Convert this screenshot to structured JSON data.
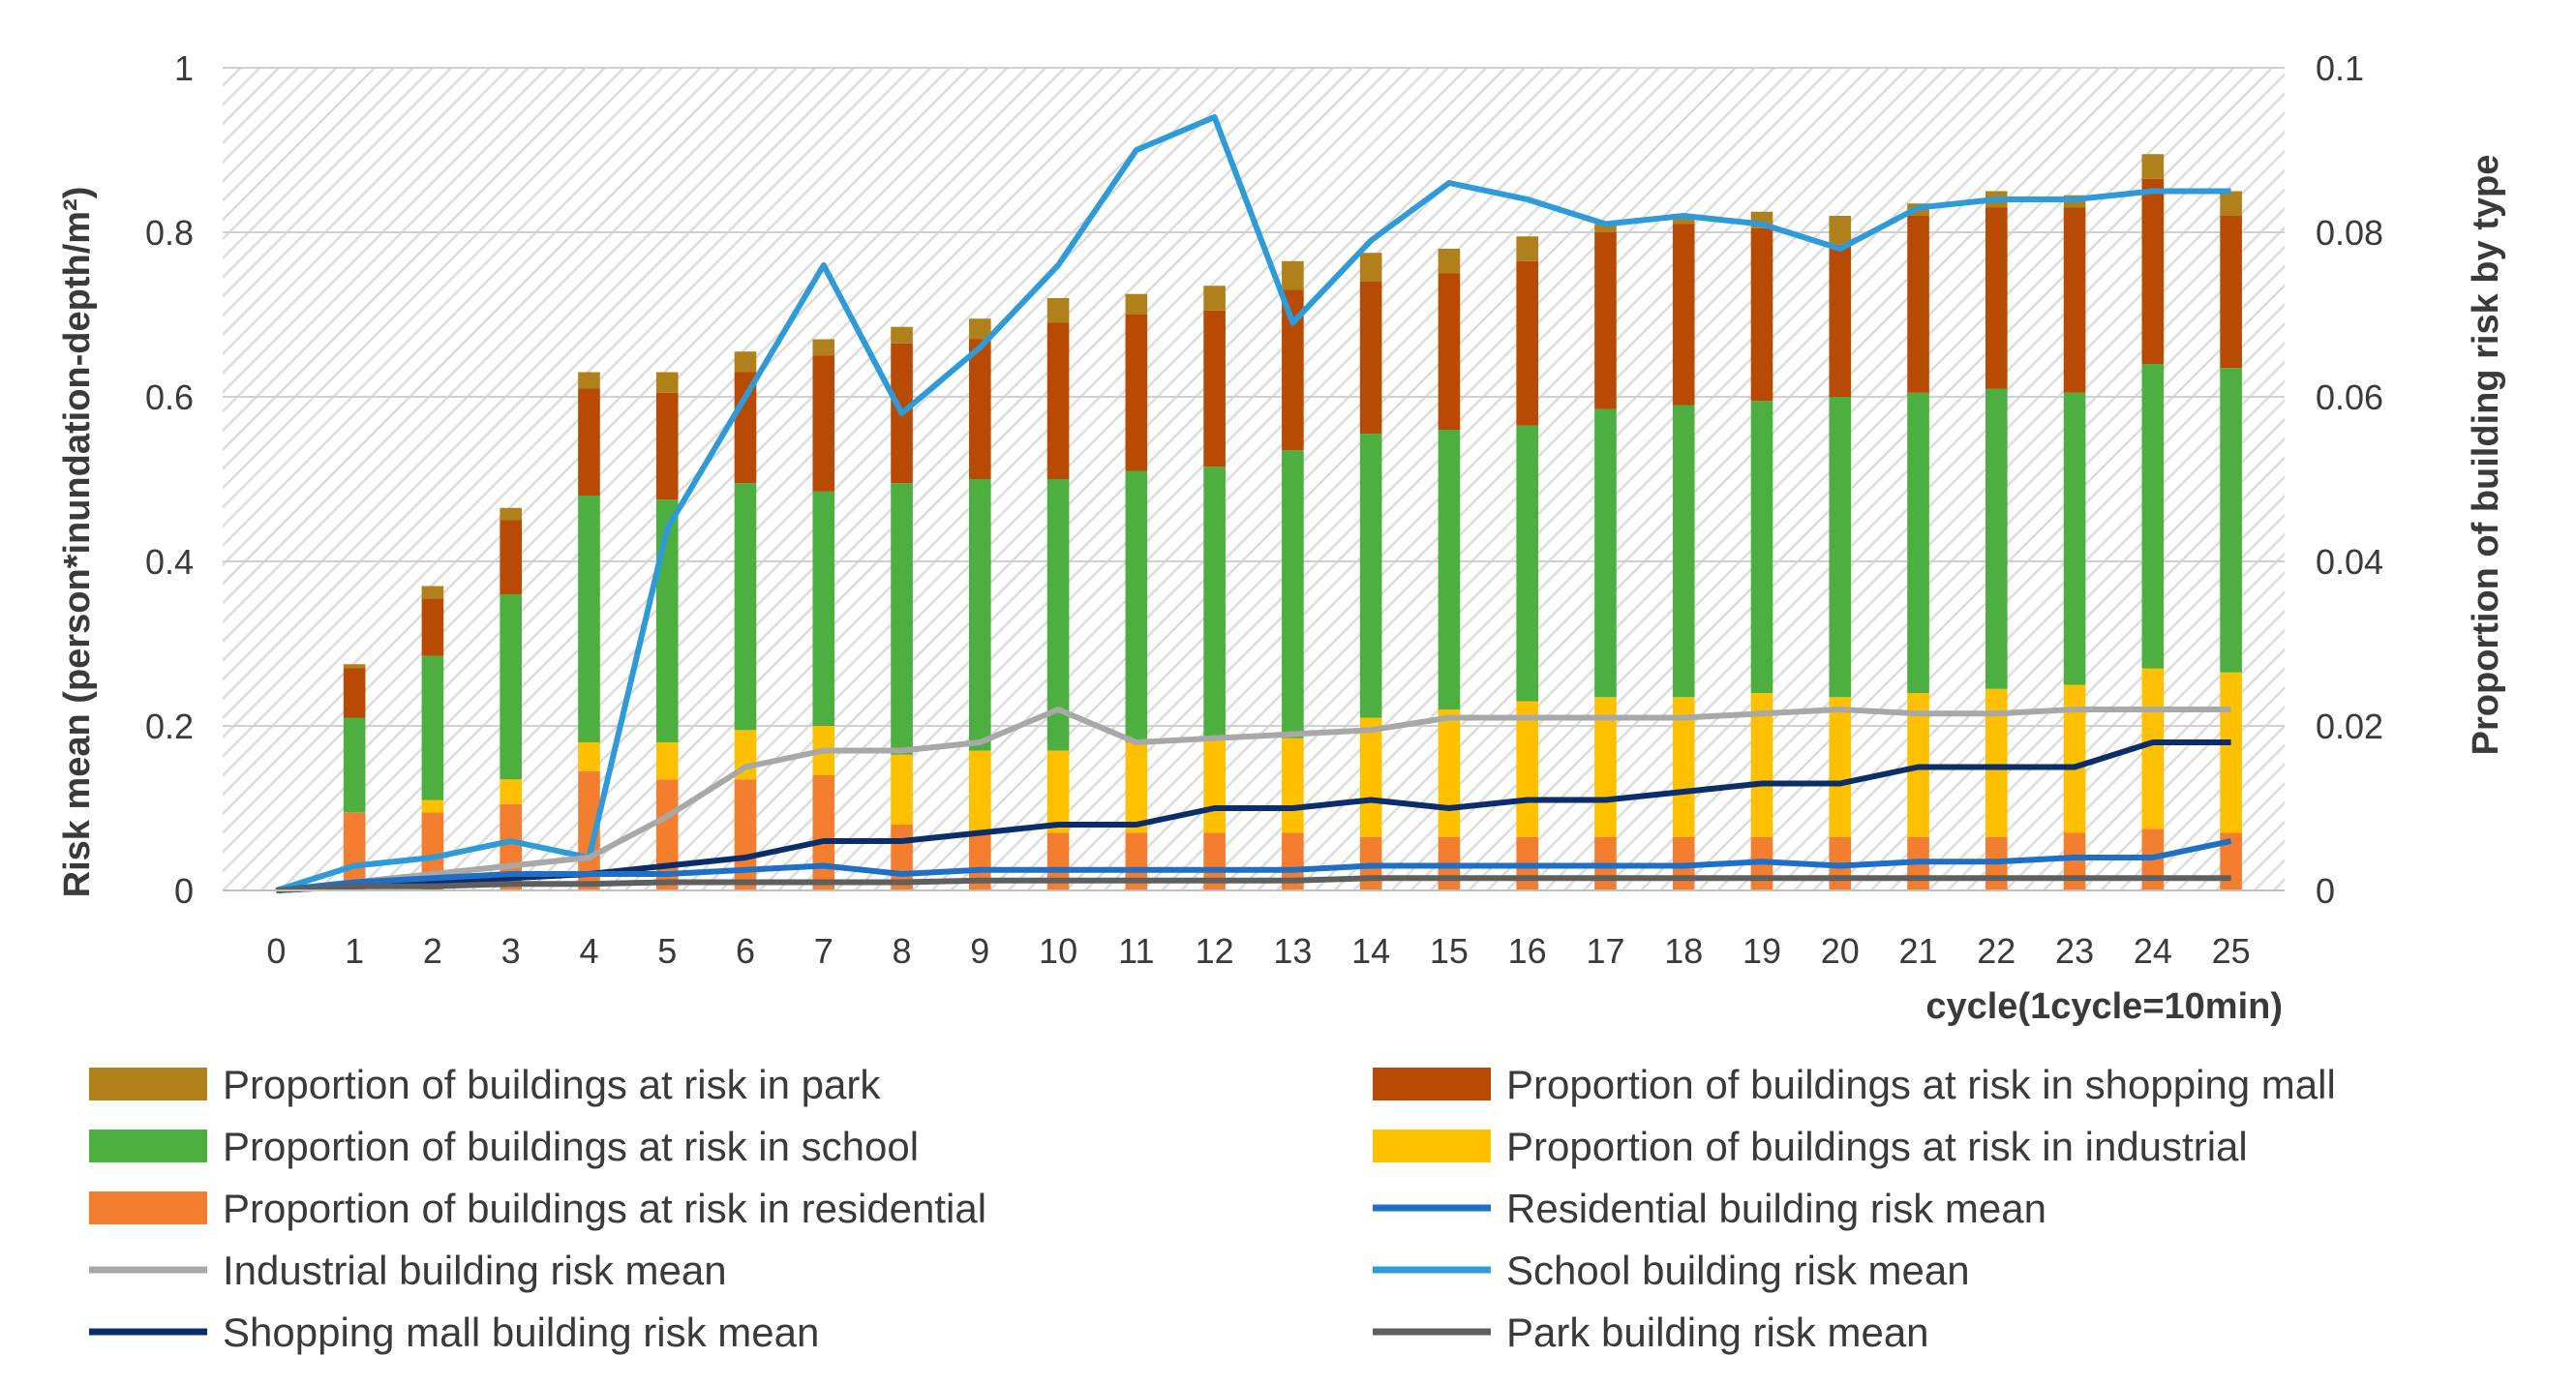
{
  "chart_data": {
    "type": "bar",
    "subtype": "stacked bar with line overlay (dual axis)",
    "title": "",
    "xlabel": "cycle(1cycle=10min)",
    "ylabel_left": "Risk mean (person*inundation-depth/m²)",
    "ylabel_right": "Proportion of building risk by type",
    "ylim_left": [
      0,
      1
    ],
    "ylim_right": [
      0,
      0.1
    ],
    "yticks_left": [
      "0",
      "0.2",
      "0.4",
      "0.6",
      "0.8",
      "1"
    ],
    "yticks_right": [
      "0",
      "0.02",
      "0.04",
      "0.06",
      "0.08",
      "0.1"
    ],
    "categories": [
      "0",
      "1",
      "2",
      "3",
      "4",
      "5",
      "6",
      "7",
      "8",
      "9",
      "10",
      "11",
      "12",
      "13",
      "14",
      "15",
      "16",
      "17",
      "18",
      "19",
      "20",
      "21",
      "22",
      "23",
      "24",
      "25"
    ],
    "grid": true,
    "legend_position": "bottom, two columns",
    "bar_series": [
      {
        "name": "Proportion of buildings at risk in residential",
        "color": "#F47E30",
        "values": [
          0,
          0.0095,
          0.0095,
          0.0105,
          0.0145,
          0.0135,
          0.0135,
          0.014,
          0.008,
          0.007,
          0.007,
          0.007,
          0.007,
          0.007,
          0.0065,
          0.0065,
          0.0065,
          0.0065,
          0.0065,
          0.0065,
          0.0065,
          0.0065,
          0.0065,
          0.007,
          0.0075,
          0.007
        ]
      },
      {
        "name": "Proportion of buildings at risk in industrial",
        "color": "#FFC000",
        "values": [
          0,
          0,
          0.0015,
          0.003,
          0.0035,
          0.0045,
          0.006,
          0.006,
          0.0085,
          0.01,
          0.01,
          0.011,
          0.0115,
          0.0115,
          0.0145,
          0.0155,
          0.0165,
          0.017,
          0.017,
          0.0175,
          0.017,
          0.0175,
          0.018,
          0.018,
          0.0195,
          0.0195
        ]
      },
      {
        "name": "Proportion of buildings at risk in school",
        "color": "#4CAF3F",
        "values": [
          0,
          0.0115,
          0.0175,
          0.0225,
          0.03,
          0.0295,
          0.03,
          0.0285,
          0.033,
          0.033,
          0.033,
          0.033,
          0.033,
          0.035,
          0.0345,
          0.034,
          0.0335,
          0.035,
          0.0355,
          0.0355,
          0.0365,
          0.0365,
          0.0365,
          0.0355,
          0.037,
          0.037
        ]
      },
      {
        "name": "Proportion of buildings at risk in shopping mall",
        "color": "#B94A04",
        "values": [
          0,
          0.006,
          0.007,
          0.009,
          0.013,
          0.013,
          0.0135,
          0.0165,
          0.017,
          0.017,
          0.019,
          0.019,
          0.019,
          0.0195,
          0.0185,
          0.019,
          0.02,
          0.0215,
          0.022,
          0.021,
          0.0185,
          0.0215,
          0.022,
          0.0225,
          0.0225,
          0.0185
        ]
      },
      {
        "name": "Proportion of buildings at risk in park",
        "color": "#B0811B",
        "values": [
          0,
          0.0005,
          0.0015,
          0.0015,
          0.002,
          0.0025,
          0.0025,
          0.002,
          0.002,
          0.0025,
          0.003,
          0.0025,
          0.003,
          0.0035,
          0.0035,
          0.003,
          0.003,
          0.001,
          0.001,
          0.002,
          0.0035,
          0.0015,
          0.002,
          0.0015,
          0.003,
          0.003
        ]
      }
    ],
    "line_series": [
      {
        "name": "School building risk mean",
        "color": "#2E9BD8",
        "values": [
          0,
          0.03,
          0.04,
          0.06,
          0.04,
          0.44,
          0.6,
          0.76,
          0.58,
          0.66,
          0.76,
          0.9,
          0.94,
          0.69,
          0.79,
          0.86,
          0.84,
          0.81,
          0.82,
          0.81,
          0.78,
          0.83,
          0.84,
          0.84,
          0.85,
          0.85
        ]
      },
      {
        "name": "Industrial building risk mean",
        "color": "#A8A8A8",
        "values": [
          0,
          0.01,
          0.02,
          0.03,
          0.04,
          0.09,
          0.15,
          0.17,
          0.17,
          0.18,
          0.22,
          0.18,
          0.185,
          0.19,
          0.195,
          0.21,
          0.21,
          0.21,
          0.21,
          0.215,
          0.22,
          0.215,
          0.215,
          0.22,
          0.22,
          0.22
        ]
      },
      {
        "name": "Shopping mall building risk mean",
        "color": "#0B2E6B",
        "values": [
          0,
          0.005,
          0.01,
          0.015,
          0.02,
          0.03,
          0.04,
          0.06,
          0.06,
          0.07,
          0.08,
          0.08,
          0.1,
          0.1,
          0.11,
          0.1,
          0.11,
          0.11,
          0.12,
          0.13,
          0.13,
          0.15,
          0.15,
          0.15,
          0.18,
          0.18
        ]
      },
      {
        "name": "Residential building risk mean",
        "color": "#1F6FC6",
        "values": [
          0,
          0.01,
          0.015,
          0.02,
          0.02,
          0.02,
          0.025,
          0.03,
          0.02,
          0.025,
          0.025,
          0.025,
          0.025,
          0.025,
          0.03,
          0.03,
          0.03,
          0.03,
          0.03,
          0.035,
          0.03,
          0.035,
          0.035,
          0.04,
          0.04,
          0.06
        ]
      },
      {
        "name": "Park building risk mean",
        "color": "#5F5F5F",
        "values": [
          0,
          0.005,
          0.005,
          0.008,
          0.008,
          0.01,
          0.01,
          0.01,
          0.01,
          0.012,
          0.012,
          0.012,
          0.012,
          0.012,
          0.015,
          0.015,
          0.015,
          0.015,
          0.015,
          0.015,
          0.015,
          0.015,
          0.015,
          0.015,
          0.015,
          0.015
        ]
      }
    ],
    "legend": [
      {
        "label": "Proportion of buildings at risk in park",
        "color": "#B0811B",
        "kind": "bar"
      },
      {
        "label": "Proportion of buildings at risk in shopping mall",
        "color": "#B94A04",
        "kind": "bar"
      },
      {
        "label": "Proportion of buildings at risk in school",
        "color": "#4CAF3F",
        "kind": "bar"
      },
      {
        "label": "Proportion of buildings at risk in industrial",
        "color": "#FFC000",
        "kind": "bar"
      },
      {
        "label": "Proportion of buildings at risk in residential",
        "color": "#F47E30",
        "kind": "bar"
      },
      {
        "label": "Residential building risk mean",
        "color": "#1F6FC6",
        "kind": "line"
      },
      {
        "label": "Industrial building risk mean",
        "color": "#A8A8A8",
        "kind": "line"
      },
      {
        "label": "School building risk mean",
        "color": "#2E9BD8",
        "kind": "line"
      },
      {
        "label": "Shopping mall building risk mean",
        "color": "#0B2E6B",
        "kind": "line"
      },
      {
        "label": "Park building risk mean",
        "color": "#5F5F5F",
        "kind": "line"
      }
    ]
  }
}
